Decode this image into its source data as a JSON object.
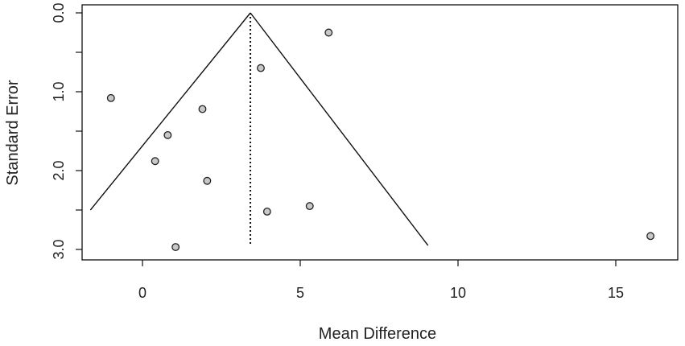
{
  "chart_data": {
    "type": "scatter",
    "subtype": "funnel-plot",
    "title": "",
    "xlabel": "Mean Difference",
    "ylabel": "Standard Error",
    "xlim": [
      -1.7,
      17.2
    ],
    "ylim": [
      0.0,
      3.05
    ],
    "y_reversed": true,
    "grid": false,
    "legend": "none",
    "x_ticks": [
      0,
      5,
      10,
      15
    ],
    "x_tick_labels": [
      "0",
      "5",
      "10",
      "15"
    ],
    "y_ticks": [
      0.0,
      0.5,
      1.0,
      1.5,
      2.0,
      2.5,
      3.0
    ],
    "y_tick_labels": [
      "0.0",
      "",
      "1.0",
      "",
      "2.0",
      "",
      "3.0"
    ],
    "summary_estimate": 3.42,
    "funnel": {
      "apex": [
        3.42,
        0.0
      ],
      "left_end": [
        -1.65,
        2.5
      ],
      "right_end": [
        9.05,
        2.95
      ]
    },
    "reference_line": {
      "x": 3.42,
      "y_from": 0.0,
      "y_to": 2.95,
      "style": "dotted"
    },
    "points": [
      {
        "x": 5.9,
        "y": 0.25
      },
      {
        "x": 3.75,
        "y": 0.7
      },
      {
        "x": -1.0,
        "y": 1.08
      },
      {
        "x": 1.9,
        "y": 1.22
      },
      {
        "x": 0.8,
        "y": 1.55
      },
      {
        "x": 0.4,
        "y": 1.88
      },
      {
        "x": 2.05,
        "y": 2.13
      },
      {
        "x": 5.3,
        "y": 2.45
      },
      {
        "x": 3.95,
        "y": 2.52
      },
      {
        "x": 1.05,
        "y": 2.97
      },
      {
        "x": 16.1,
        "y": 2.83
      }
    ],
    "colors": {
      "point_fill": "#c8c8c8",
      "point_stroke": "#222222",
      "line": "#111111",
      "box": "#111111"
    }
  }
}
